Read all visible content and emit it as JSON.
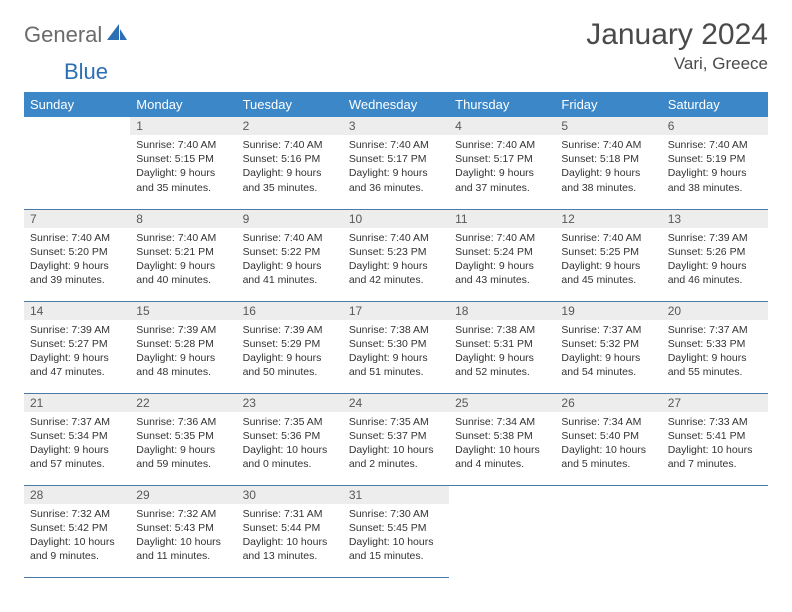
{
  "brand": {
    "part1": "General",
    "part2": "Blue"
  },
  "title": "January 2024",
  "location": "Vari, Greece",
  "colors": {
    "header_bg": "#3b87c8",
    "header_text": "#ffffff",
    "daynum_bg": "#ededed",
    "daynum_text": "#585858",
    "row_border": "#4a7aa8",
    "body_text": "#333333",
    "logo_gray": "#6b6b6b",
    "logo_blue": "#2d6fb5"
  },
  "daysOfWeek": [
    "Sunday",
    "Monday",
    "Tuesday",
    "Wednesday",
    "Thursday",
    "Friday",
    "Saturday"
  ],
  "startOffset": 1,
  "daysInMonth": 31,
  "entries": {
    "1": {
      "sunrise": "7:40 AM",
      "sunset": "5:15 PM",
      "daylight": "9 hours and 35 minutes."
    },
    "2": {
      "sunrise": "7:40 AM",
      "sunset": "5:16 PM",
      "daylight": "9 hours and 35 minutes."
    },
    "3": {
      "sunrise": "7:40 AM",
      "sunset": "5:17 PM",
      "daylight": "9 hours and 36 minutes."
    },
    "4": {
      "sunrise": "7:40 AM",
      "sunset": "5:17 PM",
      "daylight": "9 hours and 37 minutes."
    },
    "5": {
      "sunrise": "7:40 AM",
      "sunset": "5:18 PM",
      "daylight": "9 hours and 38 minutes."
    },
    "6": {
      "sunrise": "7:40 AM",
      "sunset": "5:19 PM",
      "daylight": "9 hours and 38 minutes."
    },
    "7": {
      "sunrise": "7:40 AM",
      "sunset": "5:20 PM",
      "daylight": "9 hours and 39 minutes."
    },
    "8": {
      "sunrise": "7:40 AM",
      "sunset": "5:21 PM",
      "daylight": "9 hours and 40 minutes."
    },
    "9": {
      "sunrise": "7:40 AM",
      "sunset": "5:22 PM",
      "daylight": "9 hours and 41 minutes."
    },
    "10": {
      "sunrise": "7:40 AM",
      "sunset": "5:23 PM",
      "daylight": "9 hours and 42 minutes."
    },
    "11": {
      "sunrise": "7:40 AM",
      "sunset": "5:24 PM",
      "daylight": "9 hours and 43 minutes."
    },
    "12": {
      "sunrise": "7:40 AM",
      "sunset": "5:25 PM",
      "daylight": "9 hours and 45 minutes."
    },
    "13": {
      "sunrise": "7:39 AM",
      "sunset": "5:26 PM",
      "daylight": "9 hours and 46 minutes."
    },
    "14": {
      "sunrise": "7:39 AM",
      "sunset": "5:27 PM",
      "daylight": "9 hours and 47 minutes."
    },
    "15": {
      "sunrise": "7:39 AM",
      "sunset": "5:28 PM",
      "daylight": "9 hours and 48 minutes."
    },
    "16": {
      "sunrise": "7:39 AM",
      "sunset": "5:29 PM",
      "daylight": "9 hours and 50 minutes."
    },
    "17": {
      "sunrise": "7:38 AM",
      "sunset": "5:30 PM",
      "daylight": "9 hours and 51 minutes."
    },
    "18": {
      "sunrise": "7:38 AM",
      "sunset": "5:31 PM",
      "daylight": "9 hours and 52 minutes."
    },
    "19": {
      "sunrise": "7:37 AM",
      "sunset": "5:32 PM",
      "daylight": "9 hours and 54 minutes."
    },
    "20": {
      "sunrise": "7:37 AM",
      "sunset": "5:33 PM",
      "daylight": "9 hours and 55 minutes."
    },
    "21": {
      "sunrise": "7:37 AM",
      "sunset": "5:34 PM",
      "daylight": "9 hours and 57 minutes."
    },
    "22": {
      "sunrise": "7:36 AM",
      "sunset": "5:35 PM",
      "daylight": "9 hours and 59 minutes."
    },
    "23": {
      "sunrise": "7:35 AM",
      "sunset": "5:36 PM",
      "daylight": "10 hours and 0 minutes."
    },
    "24": {
      "sunrise": "7:35 AM",
      "sunset": "5:37 PM",
      "daylight": "10 hours and 2 minutes."
    },
    "25": {
      "sunrise": "7:34 AM",
      "sunset": "5:38 PM",
      "daylight": "10 hours and 4 minutes."
    },
    "26": {
      "sunrise": "7:34 AM",
      "sunset": "5:40 PM",
      "daylight": "10 hours and 5 minutes."
    },
    "27": {
      "sunrise": "7:33 AM",
      "sunset": "5:41 PM",
      "daylight": "10 hours and 7 minutes."
    },
    "28": {
      "sunrise": "7:32 AM",
      "sunset": "5:42 PM",
      "daylight": "10 hours and 9 minutes."
    },
    "29": {
      "sunrise": "7:32 AM",
      "sunset": "5:43 PM",
      "daylight": "10 hours and 11 minutes."
    },
    "30": {
      "sunrise": "7:31 AM",
      "sunset": "5:44 PM",
      "daylight": "10 hours and 13 minutes."
    },
    "31": {
      "sunrise": "7:30 AM",
      "sunset": "5:45 PM",
      "daylight": "10 hours and 15 minutes."
    }
  },
  "labels": {
    "sunrise": "Sunrise: ",
    "sunset": "Sunset: ",
    "daylight": "Daylight: "
  }
}
